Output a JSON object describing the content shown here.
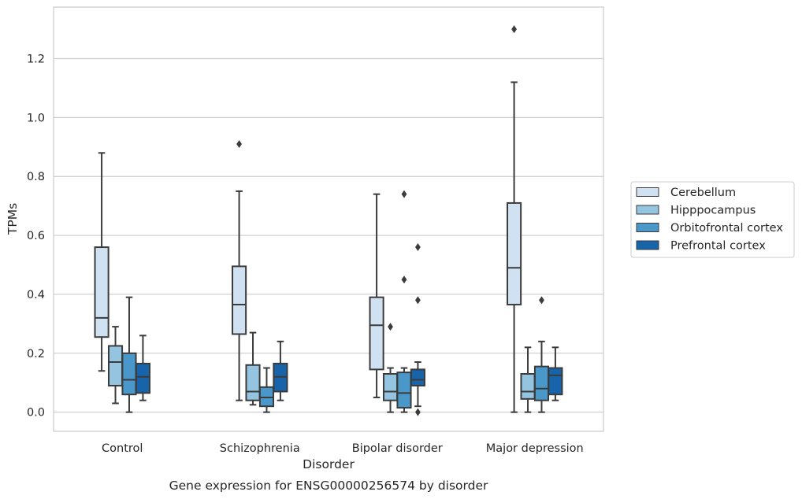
{
  "chart_data": {
    "type": "boxplot",
    "caption": "Gene expression for ENSG00000256574 by disorder",
    "xlabel": "Disorder",
    "ylabel": "TPMs",
    "ylim": [
      -0.065,
      1.375
    ],
    "yticks": [
      0.0,
      0.2,
      0.4,
      0.6,
      0.8,
      1.0,
      1.2
    ],
    "ytick_labels": [
      "0.0",
      "0.2",
      "0.4",
      "0.6",
      "0.8",
      "1.0",
      "1.2"
    ],
    "grid": true,
    "legend_position": "right",
    "categories": [
      "Control",
      "Schizophrenia",
      "Bipolar disorder",
      "Major depression"
    ],
    "series": [
      {
        "name": "Cerebellum",
        "color": "#d0e1f2",
        "boxes": [
          {
            "whislo": 0.14,
            "q1": 0.255,
            "med": 0.32,
            "q3": 0.56,
            "whishi": 0.88,
            "fliers": []
          },
          {
            "whislo": 0.04,
            "q1": 0.265,
            "med": 0.365,
            "q3": 0.495,
            "whishi": 0.75,
            "fliers": [
              0.91
            ]
          },
          {
            "whislo": 0.05,
            "q1": 0.145,
            "med": 0.295,
            "q3": 0.39,
            "whishi": 0.74,
            "fliers": []
          },
          {
            "whislo": 0.0,
            "q1": 0.365,
            "med": 0.49,
            "q3": 0.71,
            "whishi": 1.12,
            "fliers": [
              1.3
            ]
          }
        ]
      },
      {
        "name": "Hipppocampus",
        "color": "#94c4df",
        "boxes": [
          {
            "whislo": 0.03,
            "q1": 0.09,
            "med": 0.17,
            "q3": 0.225,
            "whishi": 0.29,
            "fliers": []
          },
          {
            "whislo": 0.025,
            "q1": 0.04,
            "med": 0.07,
            "q3": 0.16,
            "whishi": 0.27,
            "fliers": []
          },
          {
            "whislo": 0.0,
            "q1": 0.04,
            "med": 0.07,
            "q3": 0.13,
            "whishi": 0.15,
            "fliers": [
              0.29
            ]
          },
          {
            "whislo": 0.0,
            "q1": 0.045,
            "med": 0.07,
            "q3": 0.13,
            "whishi": 0.22,
            "fliers": []
          }
        ]
      },
      {
        "name": "Orbitofrontal cortex",
        "color": "#4a98c9",
        "boxes": [
          {
            "whislo": 0.0,
            "q1": 0.06,
            "med": 0.11,
            "q3": 0.2,
            "whishi": 0.39,
            "fliers": []
          },
          {
            "whislo": 0.0,
            "q1": 0.02,
            "med": 0.05,
            "q3": 0.085,
            "whishi": 0.15,
            "fliers": []
          },
          {
            "whislo": 0.0,
            "q1": 0.015,
            "med": 0.065,
            "q3": 0.135,
            "whishi": 0.15,
            "fliers": [
              0.45,
              0.74
            ]
          },
          {
            "whislo": 0.0,
            "q1": 0.04,
            "med": 0.08,
            "q3": 0.155,
            "whishi": 0.24,
            "fliers": [
              0.38
            ]
          }
        ]
      },
      {
        "name": "Prefrontal cortex",
        "color": "#1764ab",
        "boxes": [
          {
            "whislo": 0.04,
            "q1": 0.065,
            "med": 0.12,
            "q3": 0.165,
            "whishi": 0.26,
            "fliers": []
          },
          {
            "whislo": 0.04,
            "q1": 0.07,
            "med": 0.12,
            "q3": 0.165,
            "whishi": 0.24,
            "fliers": []
          },
          {
            "whislo": 0.02,
            "q1": 0.09,
            "med": 0.11,
            "q3": 0.145,
            "whishi": 0.17,
            "fliers": [
              0.0,
              0.38,
              0.56
            ]
          },
          {
            "whislo": 0.04,
            "q1": 0.06,
            "med": 0.125,
            "q3": 0.15,
            "whishi": 0.22,
            "fliers": []
          }
        ]
      }
    ]
  }
}
